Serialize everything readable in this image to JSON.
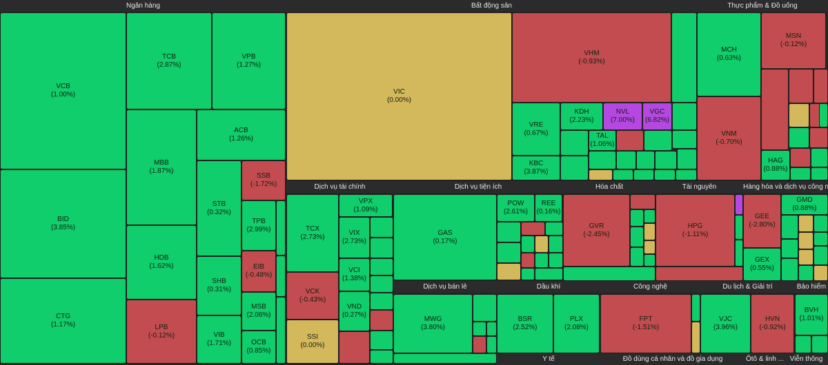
{
  "colors": {
    "up": "#0fce6b",
    "down": "#c24c50",
    "flat": "#d4b85c",
    "ceiling": "#b548e0",
    "border": "#1f1f1f",
    "header_bg": "#2b2b2b",
    "header_text": "#e8e8e8"
  },
  "chart_data": {
    "type": "treemap",
    "sectors": [
      {
        "name": "Ngân hàng",
        "stocks": [
          {
            "ticker": "VCB",
            "change": "(1.00%)",
            "trend": "up"
          },
          {
            "ticker": "BID",
            "change": "(3.85%)",
            "trend": "up"
          },
          {
            "ticker": "CTG",
            "change": "(1.17%)",
            "trend": "up"
          },
          {
            "ticker": "TCB",
            "change": "(2.87%)",
            "trend": "up"
          },
          {
            "ticker": "VPB",
            "change": "(1.27%)",
            "trend": "up"
          },
          {
            "ticker": "ACB",
            "change": "(1.26%)",
            "trend": "up"
          },
          {
            "ticker": "MBB",
            "change": "(1.87%)",
            "trend": "up"
          },
          {
            "ticker": "STB",
            "change": "(0.32%)",
            "trend": "up"
          },
          {
            "ticker": "SSB",
            "change": "(-1.72%)",
            "trend": "down"
          },
          {
            "ticker": "TPB",
            "change": "(2.99%)",
            "trend": "up"
          },
          {
            "ticker": "HDB",
            "change": "(1.62%)",
            "trend": "up"
          },
          {
            "ticker": "SHB",
            "change": "(0.31%)",
            "trend": "up"
          },
          {
            "ticker": "EIB",
            "change": "(-0.48%)",
            "trend": "down"
          },
          {
            "ticker": "MSB",
            "change": "(2.06%)",
            "trend": "up"
          },
          {
            "ticker": "LPB",
            "change": "(-0.12%)",
            "trend": "down"
          },
          {
            "ticker": "VIB",
            "change": "(1.71%)",
            "trend": "up"
          },
          {
            "ticker": "OCB",
            "change": "(0.85%)",
            "trend": "up"
          }
        ]
      },
      {
        "name": "Bất động sản",
        "stocks": [
          {
            "ticker": "VIC",
            "change": "(0.00%)",
            "trend": "flat"
          },
          {
            "ticker": "VHM",
            "change": "(-0.93%)",
            "trend": "down"
          },
          {
            "ticker": "VRE",
            "change": "(0.67%)",
            "trend": "up"
          },
          {
            "ticker": "KDH",
            "change": "(2.23%)",
            "trend": "up"
          },
          {
            "ticker": "NVL",
            "change": "(7.00%)",
            "trend": "ceiling"
          },
          {
            "ticker": "VGC",
            "change": "(6.82%)",
            "trend": "ceiling"
          },
          {
            "ticker": "TAL",
            "change": "(1.06%)",
            "trend": "up"
          },
          {
            "ticker": "KBC",
            "change": "(3.87%)",
            "trend": "up"
          }
        ]
      },
      {
        "name": "Thực phẩm & Đồ uống",
        "stocks": [
          {
            "ticker": "MCH",
            "change": "(0.63%)",
            "trend": "up"
          },
          {
            "ticker": "MSN",
            "change": "(-0.12%)",
            "trend": "down"
          },
          {
            "ticker": "VNM",
            "change": "(-0.70%)",
            "trend": "down"
          },
          {
            "ticker": "HAG",
            "change": "(0.88%)",
            "trend": "up"
          }
        ]
      },
      {
        "name": "Dịch vụ tài chính",
        "stocks": [
          {
            "ticker": "TCX",
            "change": "(2.73%)",
            "trend": "up"
          },
          {
            "ticker": "VPX",
            "change": "(1.09%)",
            "trend": "up"
          },
          {
            "ticker": "VIX",
            "change": "(2.73%)",
            "trend": "up"
          },
          {
            "ticker": "VCI",
            "change": "(1.38%)",
            "trend": "up"
          },
          {
            "ticker": "VCK",
            "change": "(-0.43%)",
            "trend": "down"
          },
          {
            "ticker": "VND",
            "change": "(0.27%)",
            "trend": "up"
          },
          {
            "ticker": "SSI",
            "change": "(0.00%)",
            "trend": "flat"
          }
        ]
      },
      {
        "name": "Dịch vụ tiện ích",
        "stocks": [
          {
            "ticker": "GAS",
            "change": "(0.17%)",
            "trend": "up"
          },
          {
            "ticker": "POW",
            "change": "(2.61%)",
            "trend": "up"
          },
          {
            "ticker": "REE",
            "change": "(0.16%)",
            "trend": "up"
          }
        ]
      },
      {
        "name": "Hóa chất",
        "stocks": [
          {
            "ticker": "GVR",
            "change": "(-2.45%)",
            "trend": "down"
          }
        ]
      },
      {
        "name": "Tài nguyên",
        "stocks": [
          {
            "ticker": "HPG",
            "change": "(-1.11%)",
            "trend": "down"
          }
        ]
      },
      {
        "name": "Hàng hóa và dịch vụ công n...",
        "stocks": [
          {
            "ticker": "GEE",
            "change": "(-2.80%)",
            "trend": "down"
          },
          {
            "ticker": "GMD",
            "change": "(0.88%)",
            "trend": "up"
          },
          {
            "ticker": "GEX",
            "change": "(0.55%)",
            "trend": "up"
          }
        ]
      },
      {
        "name": "Dịch vụ bán lẻ",
        "stocks": [
          {
            "ticker": "MWG",
            "change": "(3.80%)",
            "trend": "up"
          }
        ]
      },
      {
        "name": "Dầu khí",
        "stocks": [
          {
            "ticker": "BSR",
            "change": "(2.52%)",
            "trend": "up"
          },
          {
            "ticker": "PLX",
            "change": "(2.08%)",
            "trend": "up"
          }
        ]
      },
      {
        "name": "Công nghệ",
        "stocks": [
          {
            "ticker": "FPT",
            "change": "(-1.51%)",
            "trend": "down"
          }
        ]
      },
      {
        "name": "Du lịch & Giải trí",
        "stocks": [
          {
            "ticker": "VJC",
            "change": "(3.96%)",
            "trend": "up"
          },
          {
            "ticker": "HVN",
            "change": "(-0.92%)",
            "trend": "down"
          }
        ]
      },
      {
        "name": "Bảo hiểm",
        "stocks": [
          {
            "ticker": "BVH",
            "change": "(1.01%)",
            "trend": "up"
          }
        ]
      },
      {
        "name": "Y tế",
        "stocks": []
      },
      {
        "name": "Đồ dùng cá nhân và đồ gia dụng",
        "stocks": []
      },
      {
        "name": "Ôtô & linh ...",
        "stocks": []
      },
      {
        "name": "Viễn thông",
        "stocks": []
      }
    ]
  }
}
